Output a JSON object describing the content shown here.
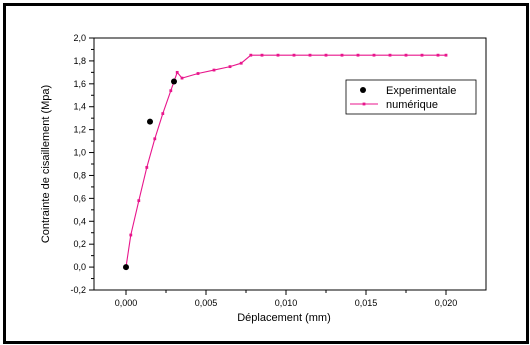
{
  "chart_data": {
    "type": "line",
    "title": "",
    "xlabel": "Déplacement (mm)",
    "ylabel": "Contrainte de cisaillement (Mpa)",
    "xlim": [
      -0.002,
      0.0225
    ],
    "ylim": [
      -0.2,
      2.0
    ],
    "x_ticks": [
      0.0,
      0.005,
      0.01,
      0.015,
      0.02
    ],
    "x_tick_labels": [
      "0,000",
      "0,005",
      "0,010",
      "0,015",
      "0,020"
    ],
    "y_ticks": [
      -0.2,
      0.0,
      0.2,
      0.4,
      0.6,
      0.8,
      1.0,
      1.2,
      1.4,
      1.6,
      1.8,
      2.0
    ],
    "y_tick_labels": [
      "-0,2",
      "0,0",
      "0,2",
      "0,4",
      "0,6",
      "0,8",
      "1,0",
      "1,2",
      "1,4",
      "1,6",
      "1,8",
      "2,0"
    ],
    "grid": false,
    "legend_position": "top-right",
    "series": [
      {
        "name": "Experimentale",
        "kind": "scatter",
        "color": "#000000",
        "points": [
          [
            0.0,
            0.0
          ],
          [
            0.0015,
            1.27
          ],
          [
            0.003,
            1.62
          ]
        ]
      },
      {
        "name": "numérique",
        "kind": "line",
        "color": "#e8168c",
        "points": [
          [
            0.0,
            0.0
          ],
          [
            0.0003,
            0.28
          ],
          [
            0.0008,
            0.58
          ],
          [
            0.0013,
            0.87
          ],
          [
            0.0018,
            1.12
          ],
          [
            0.0023,
            1.34
          ],
          [
            0.0028,
            1.54
          ],
          [
            0.0032,
            1.7
          ],
          [
            0.0035,
            1.65
          ],
          [
            0.0045,
            1.69
          ],
          [
            0.0055,
            1.72
          ],
          [
            0.0065,
            1.75
          ],
          [
            0.0072,
            1.78
          ],
          [
            0.0078,
            1.85
          ],
          [
            0.0085,
            1.85
          ],
          [
            0.0095,
            1.85
          ],
          [
            0.0105,
            1.85
          ],
          [
            0.0115,
            1.85
          ],
          [
            0.0125,
            1.85
          ],
          [
            0.0135,
            1.85
          ],
          [
            0.0145,
            1.85
          ],
          [
            0.0155,
            1.85
          ],
          [
            0.0165,
            1.85
          ],
          [
            0.0175,
            1.85
          ],
          [
            0.0185,
            1.85
          ],
          [
            0.0195,
            1.85
          ],
          [
            0.02,
            1.85
          ]
        ]
      }
    ]
  }
}
